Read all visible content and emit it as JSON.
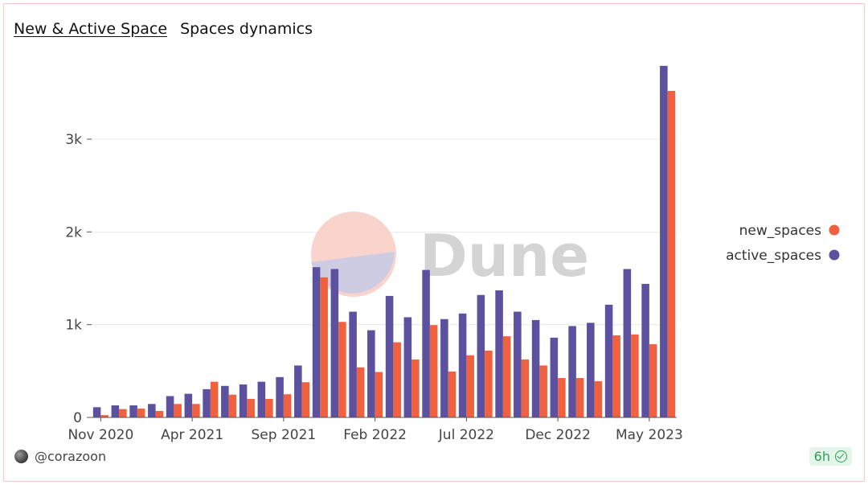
{
  "header": {
    "title": "New & Active Space",
    "subtitle": "Spaces dynamics"
  },
  "footer": {
    "user": "@corazoon",
    "refresh_badge": "6h"
  },
  "watermark": {
    "text": "Dune"
  },
  "colors": {
    "new_spaces": "#f06140",
    "active_spaces": "#5b519e",
    "grid": "#e8e8e8",
    "axis": "#555555"
  },
  "chart_data": {
    "type": "bar",
    "title": "",
    "xlabel": "",
    "ylabel": "",
    "ylim": [
      0,
      3800
    ],
    "y_ticks": [
      0,
      1000,
      2000,
      3000
    ],
    "y_tick_labels": [
      "0",
      "1k",
      "2k",
      "3k"
    ],
    "x_tick_labels": [
      "Nov 2020",
      "Apr 2021",
      "Sep 2021",
      "Feb 2022",
      "Jul 2022",
      "Dec 2022",
      "May 2023"
    ],
    "x_tick_indices": [
      0,
      5,
      10,
      15,
      20,
      25,
      30
    ],
    "categories": [
      "2020-11",
      "2020-12",
      "2021-01",
      "2021-02",
      "2021-03",
      "2021-04",
      "2021-05",
      "2021-06",
      "2021-07",
      "2021-08",
      "2021-09",
      "2021-10",
      "2021-11",
      "2021-12",
      "2022-01",
      "2022-02",
      "2022-03",
      "2022-04",
      "2022-05",
      "2022-06",
      "2022-07",
      "2022-08",
      "2022-09",
      "2022-10",
      "2022-11",
      "2022-12",
      "2023-01",
      "2023-02",
      "2023-03",
      "2023-04",
      "2023-05",
      "2023-06"
    ],
    "grid": true,
    "legend_position": "right",
    "series": [
      {
        "name": "active_spaces",
        "values": [
          110,
          130,
          130,
          145,
          230,
          255,
          305,
          340,
          355,
          385,
          435,
          560,
          1620,
          1600,
          1140,
          940,
          1310,
          1080,
          1590,
          1060,
          1120,
          1320,
          1370,
          1140,
          1050,
          860,
          985,
          1020,
          1215,
          1600,
          1440,
          3790
        ]
      },
      {
        "name": "new_spaces",
        "values": [
          25,
          90,
          95,
          70,
          145,
          145,
          385,
          245,
          200,
          200,
          250,
          380,
          1510,
          1030,
          540,
          490,
          810,
          625,
          995,
          495,
          670,
          720,
          875,
          625,
          560,
          425,
          425,
          390,
          885,
          895,
          790,
          3520
        ]
      }
    ]
  }
}
